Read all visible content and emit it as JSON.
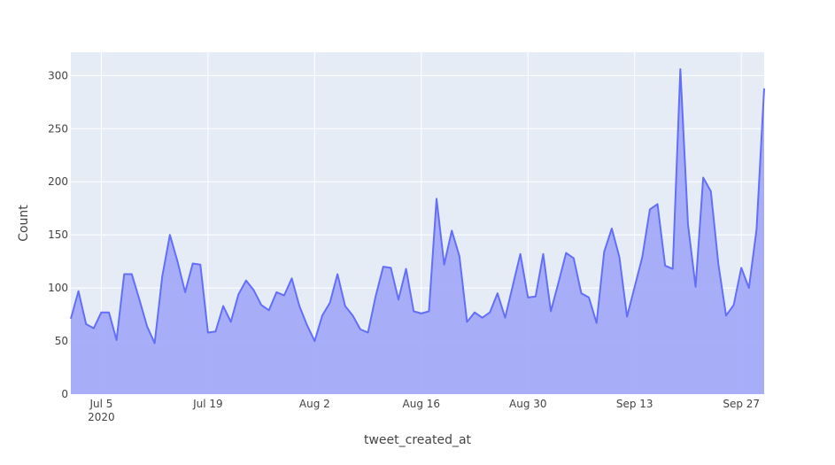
{
  "chart_data": {
    "type": "area",
    "title": "",
    "xlabel": "tweet_created_at",
    "ylabel": "Count",
    "x_start_label": "2020-07-01",
    "x_step_days": 1,
    "values": [
      71,
      97,
      66,
      62,
      77,
      77,
      51,
      113,
      113,
      89,
      64,
      48,
      111,
      150,
      125,
      96,
      123,
      122,
      58,
      59,
      83,
      68,
      94,
      107,
      98,
      84,
      79,
      96,
      93,
      109,
      83,
      65,
      50,
      74,
      86,
      113,
      83,
      74,
      61,
      58,
      92,
      120,
      119,
      89,
      118,
      78,
      76,
      78,
      184,
      122,
      154,
      130,
      68,
      77,
      72,
      77,
      95,
      72,
      102,
      132,
      91,
      92,
      132,
      78,
      105,
      133,
      128,
      95,
      91,
      67,
      134,
      156,
      129,
      73,
      101,
      129,
      174,
      179,
      121,
      118,
      306,
      160,
      101,
      204,
      191,
      122,
      74,
      84,
      119,
      100,
      155,
      288
    ],
    "x_ticks": [
      {
        "label": "Jul 5",
        "sublabel": "2020",
        "day": 4
      },
      {
        "label": "Jul 19",
        "sublabel": "",
        "day": 18
      },
      {
        "label": "Aug 2",
        "sublabel": "",
        "day": 32
      },
      {
        "label": "Aug 16",
        "sublabel": "",
        "day": 46
      },
      {
        "label": "Aug 30",
        "sublabel": "",
        "day": 60
      },
      {
        "label": "Sep 13",
        "sublabel": "",
        "day": 74
      },
      {
        "label": "Sep 27",
        "sublabel": "",
        "day": 88
      }
    ],
    "y_ticks": [
      0,
      50,
      100,
      150,
      200,
      250,
      300
    ],
    "ylim": [
      0,
      322
    ],
    "grid": true,
    "colors": {
      "line": "#636efa",
      "fill": "#a3abf7",
      "plot_bg": "#e5ecf6",
      "grid": "#ffffff"
    }
  }
}
